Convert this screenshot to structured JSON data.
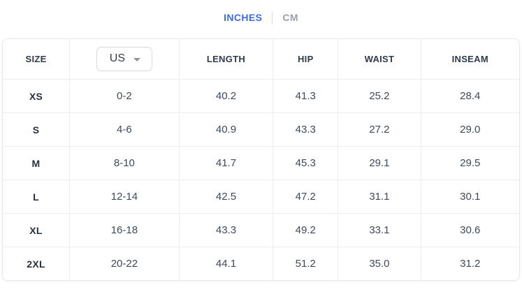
{
  "tabs": {
    "inches_label": "INCHES",
    "cm_label": "CM",
    "active": "INCHES"
  },
  "colors": {
    "accent_blue": "#3d6be0",
    "inactive_gray": "#9aa1ab",
    "grid_line": "#ededef",
    "text_dark": "#2f3b4a"
  },
  "size_chart": {
    "region_select": {
      "value": "US"
    },
    "columns": [
      "SIZE",
      "US",
      "LENGTH",
      "HIP",
      "WAIST",
      "INSEAM"
    ],
    "header": {
      "size": "SIZE",
      "length": "LENGTH",
      "hip": "HIP",
      "waist": "WAIST",
      "inseam": "INSEAM"
    },
    "rows": [
      {
        "size": "XS",
        "us": "0-2",
        "length": "40.2",
        "hip": "41.3",
        "waist": "25.2",
        "inseam": "28.4"
      },
      {
        "size": "S",
        "us": "4-6",
        "length": "40.9",
        "hip": "43.3",
        "waist": "27.2",
        "inseam": "29.0"
      },
      {
        "size": "M",
        "us": "8-10",
        "length": "41.7",
        "hip": "45.3",
        "waist": "29.1",
        "inseam": "29.5"
      },
      {
        "size": "L",
        "us": "12-14",
        "length": "42.5",
        "hip": "47.2",
        "waist": "31.1",
        "inseam": "30.1"
      },
      {
        "size": "XL",
        "us": "16-18",
        "length": "43.3",
        "hip": "49.2",
        "waist": "33.1",
        "inseam": "30.6"
      },
      {
        "size": "2XL",
        "us": "20-22",
        "length": "44.1",
        "hip": "51.2",
        "waist": "35.0",
        "inseam": "31.2"
      }
    ]
  }
}
